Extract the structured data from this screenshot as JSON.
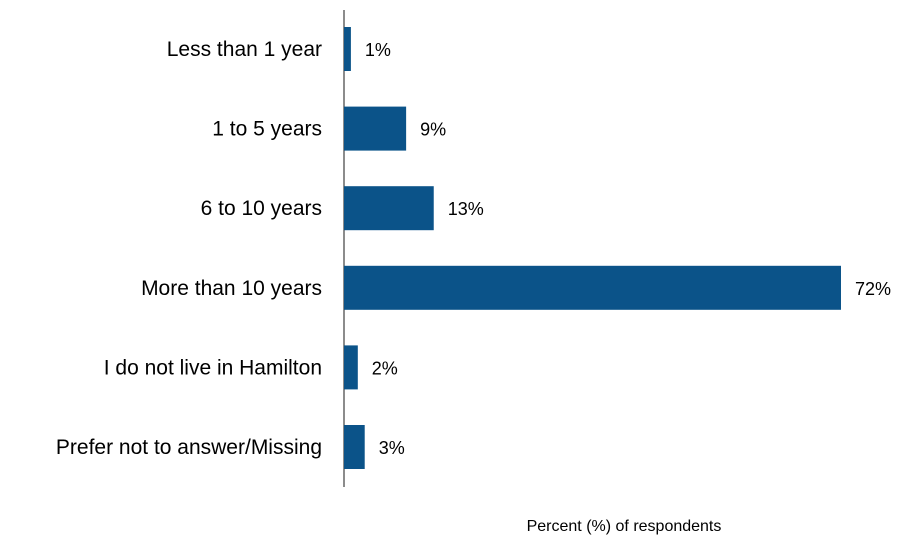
{
  "chart_data": {
    "type": "bar",
    "orientation": "horizontal",
    "categories": [
      "Less than 1 year",
      "1 to 5 years",
      "6 to 10 years",
      "More than 10 years",
      "I do not live in Hamilton",
      "Prefer not to answer/Missing"
    ],
    "values": [
      1,
      9,
      13,
      72,
      2,
      3
    ],
    "value_labels": [
      "1%",
      "9%",
      "13%",
      "72%",
      "2%",
      "3%"
    ],
    "xlabel": "Percent (%) of respondents",
    "ylabel": "",
    "xlim": [
      0,
      72
    ],
    "grid": false,
    "legend": "none",
    "bar_color": "#0b5389",
    "axis_color": "#666666"
  }
}
